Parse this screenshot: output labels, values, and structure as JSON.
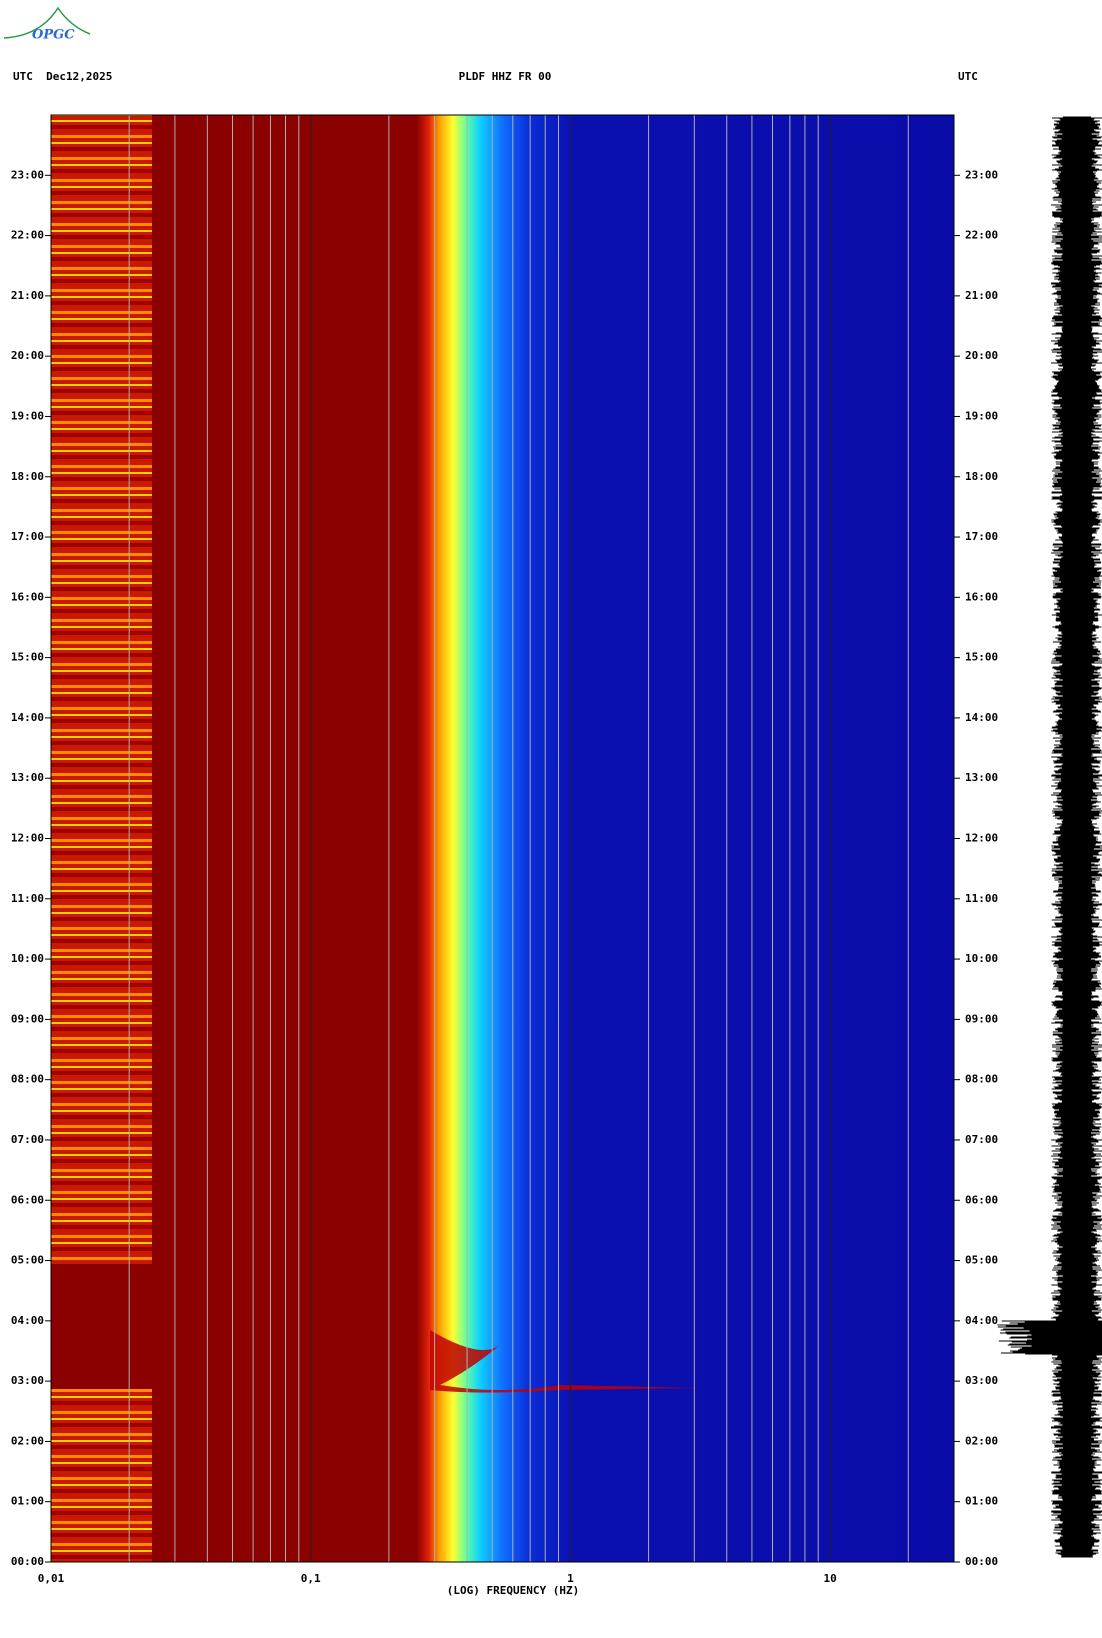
{
  "header": {
    "left": "UTC  Dec12,2025",
    "center": "PLDF HHZ FR 00",
    "right": "UTC",
    "logo": "OPGC"
  },
  "chart_data": {
    "type": "spectrogram",
    "xlabel": "(LOG) FREQUENCY (HZ)",
    "xscale": "log",
    "xlim": [
      0.01,
      30
    ],
    "xticks": [
      {
        "value": 0.01,
        "label": "0,01"
      },
      {
        "value": 0.1,
        "label": "0,1"
      },
      1,
      10
    ],
    "xminorticks": [
      0.02,
      0.03,
      0.04,
      0.05,
      0.06,
      0.07,
      0.08,
      0.09,
      0.2,
      0.3,
      0.4,
      0.5,
      0.6,
      0.7,
      0.8,
      0.9,
      2,
      3,
      4,
      5,
      6,
      7,
      8,
      9,
      20
    ],
    "ylim": [
      0,
      24
    ],
    "yticks": [
      {
        "value": 0,
        "label": "00:00"
      },
      {
        "value": 1,
        "label": "01:00"
      },
      {
        "value": 2,
        "label": "02:00"
      },
      {
        "value": 3,
        "label": "03:00"
      },
      {
        "value": 4,
        "label": "04:00"
      },
      {
        "value": 5,
        "label": "05:00"
      },
      {
        "value": 6,
        "label": "06:00"
      },
      {
        "value": 7,
        "label": "07:00"
      },
      {
        "value": 8,
        "label": "08:00"
      },
      {
        "value": 9,
        "label": "09:00"
      },
      {
        "value": 10,
        "label": "10:00"
      },
      {
        "value": 11,
        "label": "11:00"
      },
      {
        "value": 12,
        "label": "12:00"
      },
      {
        "value": 13,
        "label": "13:00"
      },
      {
        "value": 14,
        "label": "14:00"
      },
      {
        "value": 15,
        "label": "15:00"
      },
      {
        "value": 16,
        "label": "16:00"
      },
      {
        "value": 17,
        "label": "17:00"
      },
      {
        "value": 18,
        "label": "18:00"
      },
      {
        "value": 19,
        "label": "19:00"
      },
      {
        "value": 20,
        "label": "20:00"
      },
      {
        "value": 21,
        "label": "21:00"
      },
      {
        "value": 22,
        "label": "22:00"
      },
      {
        "value": 23,
        "label": "23:00"
      }
    ],
    "grid": true
  }
}
